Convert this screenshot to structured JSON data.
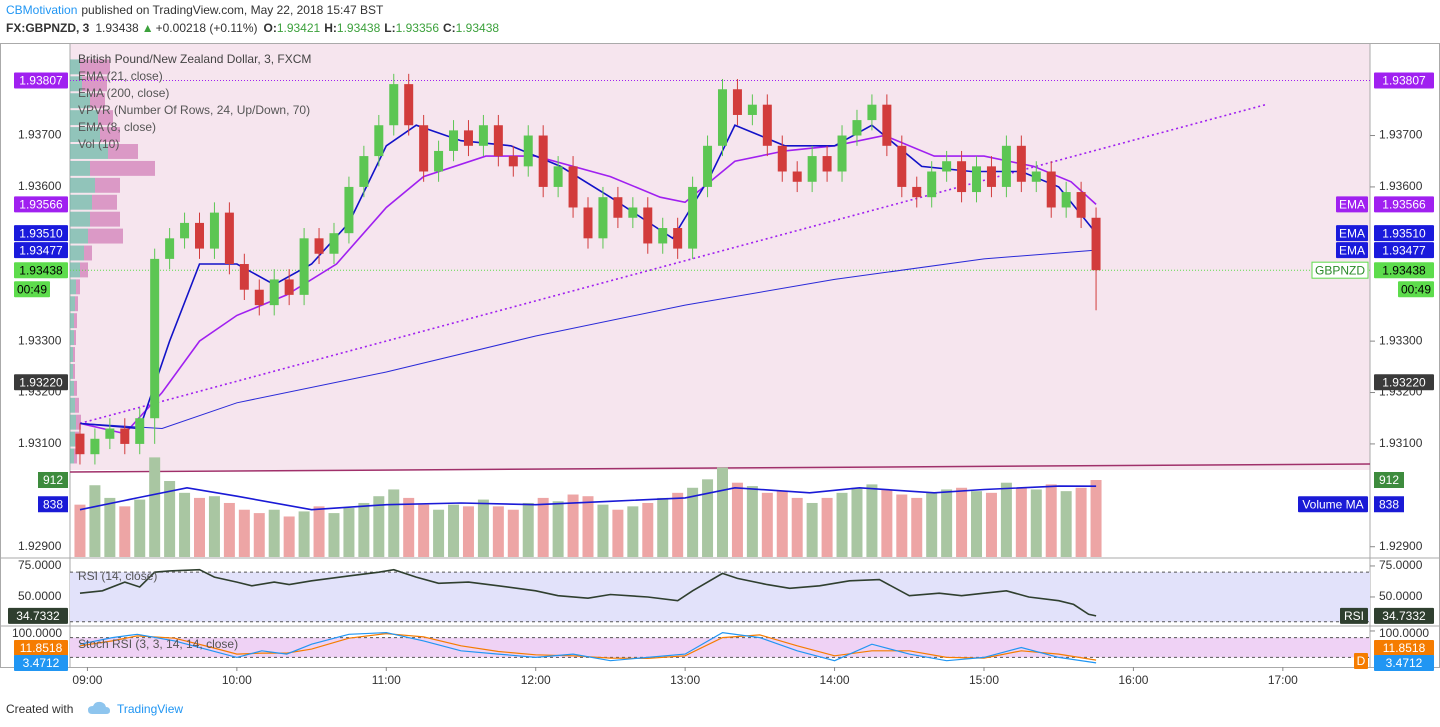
{
  "header": {
    "author": "CBMotivation",
    "published": "published on TradingView.com, May 22, 2018 15:47 BST",
    "symbol": "FX:GBPNZD, 3",
    "last": "1.93438",
    "change": "+0.00218 (+0.11%)",
    "o_label": "O:",
    "o": "1.93421",
    "h_label": "H:",
    "h": "1.93438",
    "l_label": "L:",
    "l": "1.93356",
    "c_label": "C:",
    "c": "1.93438"
  },
  "footer": {
    "created": "Created with",
    "brand": "TradingView"
  },
  "chart_data": {
    "type": "candlestick",
    "title": "British Pound/New Zealand Dollar, 3, FXCM",
    "x": [
      "08:57",
      "09:03",
      "09:09",
      "09:15",
      "09:21",
      "09:27",
      "09:33",
      "09:39",
      "09:45",
      "09:51",
      "09:57",
      "10:03",
      "10:09",
      "10:15",
      "10:21",
      "10:27",
      "10:33",
      "10:39",
      "10:45",
      "10:51",
      "10:57",
      "11:03",
      "11:09",
      "11:15",
      "11:21",
      "11:27",
      "11:33",
      "11:39",
      "11:45",
      "11:51",
      "11:57",
      "12:03",
      "12:09",
      "12:15",
      "12:21",
      "12:27",
      "12:33",
      "12:39",
      "12:45",
      "12:51",
      "12:57",
      "13:03",
      "13:09",
      "13:15",
      "13:21",
      "13:27",
      "13:33",
      "13:39",
      "13:45",
      "13:51",
      "13:57",
      "14:03",
      "14:09",
      "14:15",
      "14:21",
      "14:27",
      "14:33",
      "14:39",
      "14:45",
      "14:51",
      "14:57",
      "15:03",
      "15:09",
      "15:15",
      "15:21",
      "15:27",
      "15:33",
      "15:39",
      "15:45"
    ],
    "open": [
      1.9312,
      1.9308,
      1.9311,
      1.9313,
      1.931,
      1.9315,
      1.9346,
      1.935,
      1.9353,
      1.9348,
      1.9355,
      1.9345,
      1.934,
      1.9337,
      1.9342,
      1.9339,
      1.935,
      1.9347,
      1.9351,
      1.936,
      1.9366,
      1.9372,
      1.938,
      1.9372,
      1.9363,
      1.9367,
      1.9371,
      1.9368,
      1.9372,
      1.9366,
      1.9364,
      1.937,
      1.936,
      1.9364,
      1.9356,
      1.935,
      1.9358,
      1.9354,
      1.9356,
      1.9349,
      1.9352,
      1.9348,
      1.936,
      1.9368,
      1.9379,
      1.9374,
      1.9376,
      1.9368,
      1.9363,
      1.9361,
      1.9366,
      1.9363,
      1.937,
      1.9373,
      1.9376,
      1.9368,
      1.936,
      1.9358,
      1.9363,
      1.9365,
      1.9359,
      1.9364,
      1.936,
      1.9368,
      1.9361,
      1.9363,
      1.9356,
      1.9359,
      1.9354
    ],
    "high": [
      1.9314,
      1.9313,
      1.9315,
      1.9315,
      1.9317,
      1.9348,
      1.9352,
      1.9355,
      1.9355,
      1.9357,
      1.9357,
      1.9347,
      1.9342,
      1.9344,
      1.9344,
      1.9352,
      1.9352,
      1.9353,
      1.9362,
      1.9368,
      1.9374,
      1.9382,
      1.9382,
      1.9374,
      1.9369,
      1.9373,
      1.9373,
      1.9374,
      1.9374,
      1.9368,
      1.9372,
      1.9372,
      1.9366,
      1.9366,
      1.9358,
      1.936,
      1.936,
      1.9358,
      1.9358,
      1.9354,
      1.9354,
      1.9362,
      1.937,
      1.9381,
      1.9381,
      1.9378,
      1.9378,
      1.937,
      1.9365,
      1.9368,
      1.9368,
      1.9372,
      1.9375,
      1.9378,
      1.9378,
      1.937,
      1.9362,
      1.9365,
      1.9367,
      1.9367,
      1.9366,
      1.9366,
      1.937,
      1.937,
      1.9365,
      1.9365,
      1.9361,
      1.9361,
      1.9356
    ],
    "low": [
      1.9306,
      1.9306,
      1.9309,
      1.9308,
      1.9308,
      1.931,
      1.9344,
      1.9348,
      1.9346,
      1.9346,
      1.9343,
      1.9338,
      1.9335,
      1.9335,
      1.9337,
      1.9337,
      1.9345,
      1.9345,
      1.9349,
      1.9358,
      1.9364,
      1.937,
      1.937,
      1.9361,
      1.9361,
      1.9365,
      1.9366,
      1.9366,
      1.9364,
      1.9362,
      1.9362,
      1.9358,
      1.9358,
      1.9354,
      1.9348,
      1.9348,
      1.9352,
      1.9352,
      1.9347,
      1.9347,
      1.9346,
      1.9346,
      1.9358,
      1.9366,
      1.9372,
      1.9372,
      1.9366,
      1.9361,
      1.9359,
      1.9359,
      1.9361,
      1.9361,
      1.9368,
      1.9371,
      1.9366,
      1.9358,
      1.9356,
      1.9356,
      1.9361,
      1.9357,
      1.9357,
      1.9358,
      1.9358,
      1.9359,
      1.9359,
      1.9354,
      1.9354,
      1.9352,
      1.9336
    ],
    "close": [
      1.9308,
      1.9311,
      1.9313,
      1.931,
      1.9315,
      1.9346,
      1.935,
      1.9353,
      1.9348,
      1.9355,
      1.9345,
      1.934,
      1.9337,
      1.9342,
      1.9339,
      1.935,
      1.9347,
      1.9351,
      1.936,
      1.9366,
      1.9372,
      1.938,
      1.9372,
      1.9363,
      1.9367,
      1.9371,
      1.9368,
      1.9372,
      1.9366,
      1.9364,
      1.937,
      1.936,
      1.9364,
      1.9356,
      1.935,
      1.9358,
      1.9354,
      1.9356,
      1.9349,
      1.9352,
      1.9348,
      1.936,
      1.9368,
      1.9379,
      1.9374,
      1.9376,
      1.9368,
      1.9363,
      1.9361,
      1.9366,
      1.9363,
      1.937,
      1.9373,
      1.9376,
      1.9368,
      1.936,
      1.9358,
      1.9363,
      1.9365,
      1.9359,
      1.9364,
      1.936,
      1.9368,
      1.9361,
      1.9363,
      1.9356,
      1.9359,
      1.9354,
      1.93438
    ],
    "up_color": "#5cc653",
    "down_color": "#d23c3c",
    "xlim": [
      "08:53",
      "17:35"
    ],
    "xticks": [
      "09:00",
      "10:00",
      "11:00",
      "12:00",
      "13:00",
      "14:00",
      "15:00",
      "16:00",
      "17:00"
    ],
    "ylim": [
      1.9288,
      1.9388
    ],
    "yticks": [
      {
        "value": 1.929,
        "label": "1.92900"
      },
      {
        "value": 1.931,
        "label": "1.93100"
      },
      {
        "value": 1.932,
        "label": "1.93200"
      },
      {
        "value": 1.933,
        "label": "1.93300"
      },
      {
        "value": 1.936,
        "label": "1.93600"
      },
      {
        "value": 1.937,
        "label": "1.93700"
      }
    ],
    "lines": [
      {
        "name": "EMA (21, close)",
        "color": "#a020f0",
        "x": [
          "08:57",
          "09:15",
          "09:30",
          "09:45",
          "10:00",
          "10:20",
          "10:40",
          "11:00",
          "11:15",
          "11:40",
          "12:00",
          "12:30",
          "12:50",
          "13:00",
          "13:20",
          "13:40",
          "14:00",
          "14:20",
          "14:40",
          "15:00",
          "15:20",
          "15:35",
          "15:45"
        ],
        "values": [
          1.9314,
          1.9312,
          1.932,
          1.933,
          1.9335,
          1.9339,
          1.9345,
          1.9356,
          1.9362,
          1.9366,
          1.9366,
          1.9362,
          1.9358,
          1.9357,
          1.9365,
          1.9367,
          1.9368,
          1.937,
          1.9366,
          1.9366,
          1.9364,
          1.9361,
          1.93566
        ]
      },
      {
        "name": "EMA (200, close)",
        "color": "#2a2ad8",
        "x": [
          "08:57",
          "09:30",
          "10:00",
          "11:00",
          "12:00",
          "13:00",
          "14:00",
          "15:00",
          "15:45"
        ],
        "values": [
          1.9314,
          1.9313,
          1.9318,
          1.9324,
          1.9331,
          1.9337,
          1.9342,
          1.9346,
          1.93477
        ]
      },
      {
        "name": "EMA (8, close)",
        "color": "#1212c8",
        "x": [
          "08:57",
          "09:21",
          "09:33",
          "09:45",
          "10:00",
          "10:15",
          "10:30",
          "10:45",
          "11:00",
          "11:12",
          "11:30",
          "11:50",
          "12:10",
          "12:30",
          "12:55",
          "13:10",
          "13:20",
          "13:40",
          "14:00",
          "14:15",
          "14:35",
          "14:55",
          "15:15",
          "15:30",
          "15:45"
        ],
        "values": [
          1.9314,
          1.9313,
          1.933,
          1.9345,
          1.9345,
          1.9341,
          1.9345,
          1.9353,
          1.9368,
          1.9372,
          1.9369,
          1.9368,
          1.9364,
          1.9358,
          1.935,
          1.9362,
          1.9372,
          1.9368,
          1.9368,
          1.9372,
          1.9364,
          1.9363,
          1.9363,
          1.936,
          1.9351
        ]
      }
    ],
    "trendline": {
      "x": [
        "08:57",
        "16:53"
      ],
      "values": [
        1.9314,
        1.9376
      ],
      "color": "#a020f0"
    },
    "vpvr": {
      "name": "VPVR (Number Of Rows, 24, Up/Down, 70)",
      "range": [
        1.9306,
        1.9385
      ],
      "xlim": [
        0,
        1300
      ],
      "up": [
        10,
        12,
        20,
        28,
        30,
        38,
        20,
        25,
        22,
        20,
        18,
        14,
        10,
        6,
        5,
        4,
        4,
        3,
        3,
        4,
        5,
        6,
        5,
        4
      ],
      "down": [
        30,
        25,
        15,
        15,
        20,
        30,
        65,
        25,
        25,
        30,
        35,
        8,
        8,
        4,
        3,
        3,
        2,
        2,
        2,
        3,
        4,
        5,
        4,
        3
      ],
      "up_color": "#6fb8a8",
      "down_color": "#d27fb8"
    },
    "tags": [
      {
        "value": 1.93807,
        "label": "1.93807",
        "color": "#a020f0",
        "text_color": "#fff",
        "line": true
      },
      {
        "value": 1.93566,
        "label": "1.93566",
        "color": "#a020f0",
        "text_color": "#fff",
        "name": "EMA"
      },
      {
        "value": 1.9351,
        "label": "1.93510",
        "color": "#1a1adc",
        "text_color": "#fff",
        "name": "EMA"
      },
      {
        "value": 1.93477,
        "label": "1.93477",
        "color": "#1a1adc",
        "text_color": "#fff",
        "name": "EMA"
      },
      {
        "value": 1.93438,
        "label": "1.93438",
        "color": "#5ddc4c",
        "text_color": "#000",
        "name": "GBPNZD",
        "line": true,
        "countdown": "00:49"
      },
      {
        "value": 1.9322,
        "label": "1.93220",
        "color": "#3a3a3a",
        "text_color": "#fff"
      }
    ],
    "volume": {
      "name": "Vol (10)",
      "ylim": [
        0,
        6088
      ],
      "up_color": "#a9c6a2",
      "down_color": "#eda5a5",
      "values": [
        620,
        850,
        700,
        600,
        680,
        1180,
        900,
        760,
        700,
        720,
        640,
        560,
        520,
        560,
        480,
        540,
        600,
        520,
        580,
        640,
        720,
        800,
        700,
        620,
        560,
        620,
        600,
        680,
        600,
        560,
        640,
        700,
        660,
        740,
        720,
        620,
        560,
        600,
        640,
        700,
        760,
        820,
        920,
        1060,
        880,
        840,
        760,
        780,
        700,
        640,
        700,
        760,
        820,
        860,
        800,
        740,
        700,
        760,
        800,
        820,
        780,
        760,
        880,
        820,
        800,
        860,
        780,
        820,
        912
      ],
      "ma": {
        "name": "Volume MA",
        "color": "#1a1ad6",
        "x": [
          "08:57",
          "09:20",
          "09:40",
          "10:00",
          "10:30",
          "11:00",
          "11:30",
          "12:00",
          "12:30",
          "13:00",
          "13:20",
          "13:50",
          "14:10",
          "14:40",
          "15:00",
          "15:30",
          "15:45"
        ],
        "values": [
          560,
          700,
          820,
          720,
          560,
          620,
          640,
          620,
          660,
          700,
          820,
          760,
          820,
          760,
          800,
          840,
          838
        ]
      },
      "tags": [
        {
          "value": 912,
          "color": "#3d8b3d"
        },
        {
          "value": 838,
          "color": "#1a1ad6",
          "name_of": "ma"
        }
      ]
    },
    "rsi": {
      "name": "RSI (14, close)",
      "tag_name": "RSI",
      "color": "#2f3f2f",
      "band": [
        30,
        70
      ],
      "band_color": "#e2e2fa",
      "ylim": [
        27.4,
        79.8
      ],
      "yticks": [
        {
          "value": 50,
          "label": "50.0000"
        },
        {
          "value": 75,
          "label": "75.0000"
        }
      ],
      "x": [
        "08:57",
        "09:06",
        "09:15",
        "09:21",
        "09:27",
        "09:33",
        "09:45",
        "09:51",
        "10:00",
        "10:06",
        "10:15",
        "10:21",
        "10:30",
        "10:45",
        "10:57",
        "11:03",
        "11:12",
        "11:21",
        "11:33",
        "11:45",
        "12:00",
        "12:09",
        "12:21",
        "12:30",
        "12:45",
        "12:57",
        "13:03",
        "13:15",
        "13:21",
        "13:33",
        "13:42",
        "13:54",
        "14:06",
        "14:18",
        "14:30",
        "14:42",
        "14:51",
        "15:00",
        "15:09",
        "15:18",
        "15:30",
        "15:36",
        "15:42",
        "15:45"
      ],
      "values": [
        53,
        55,
        62,
        58,
        70,
        71,
        72,
        66,
        62,
        59,
        62,
        60,
        63,
        67,
        70,
        72,
        66,
        61,
        62,
        59,
        55,
        51,
        49,
        52,
        50,
        47,
        55,
        69,
        65,
        60,
        57,
        59,
        63,
        64,
        51,
        53,
        51,
        53,
        55,
        50,
        47,
        44,
        36,
        34.7332
      ]
    },
    "stoch": {
      "name": "Stoch RSI (3, 3, 14, 14, close)",
      "band": [
        20,
        80
      ],
      "band_color": "#efd2f5",
      "ylim": [
        -9,
        112
      ],
      "yticks": [
        {
          "value": 100,
          "label": "100.0000"
        }
      ],
      "series": [
        {
          "color": "#2196f3",
          "x": [
            "08:57",
            "09:10",
            "09:20",
            "09:35",
            "09:50",
            "10:00",
            "10:10",
            "10:20",
            "10:30",
            "10:45",
            "11:00",
            "11:15",
            "11:30",
            "11:45",
            "12:00",
            "12:15",
            "12:30",
            "12:45",
            "13:00",
            "13:15",
            "13:30",
            "13:45",
            "14:00",
            "14:15",
            "14:30",
            "14:45",
            "15:00",
            "15:15",
            "15:30",
            "15:45"
          ],
          "values": [
            60,
            80,
            90,
            70,
            40,
            20,
            40,
            30,
            60,
            90,
            95,
            70,
            40,
            30,
            20,
            30,
            10,
            20,
            30,
            95,
            80,
            40,
            10,
            60,
            30,
            10,
            20,
            50,
            20,
            3.4712
          ]
        },
        {
          "name": "D",
          "color": "#f57c00",
          "x": [
            "08:57",
            "09:10",
            "09:20",
            "09:35",
            "09:50",
            "10:00",
            "10:10",
            "10:20",
            "10:30",
            "10:45",
            "11:00",
            "11:15",
            "11:30",
            "11:45",
            "12:00",
            "12:15",
            "12:30",
            "12:45",
            "13:00",
            "13:15",
            "13:30",
            "13:45",
            "14:00",
            "14:15",
            "14:30",
            "14:45",
            "15:00",
            "15:15",
            "15:30",
            "15:45"
          ],
          "values": [
            55,
            70,
            85,
            78,
            50,
            30,
            33,
            33,
            45,
            78,
            92,
            82,
            55,
            38,
            28,
            25,
            18,
            17,
            25,
            80,
            88,
            55,
            25,
            40,
            40,
            20,
            18,
            40,
            30,
            11.8518
          ]
        }
      ]
    }
  }
}
